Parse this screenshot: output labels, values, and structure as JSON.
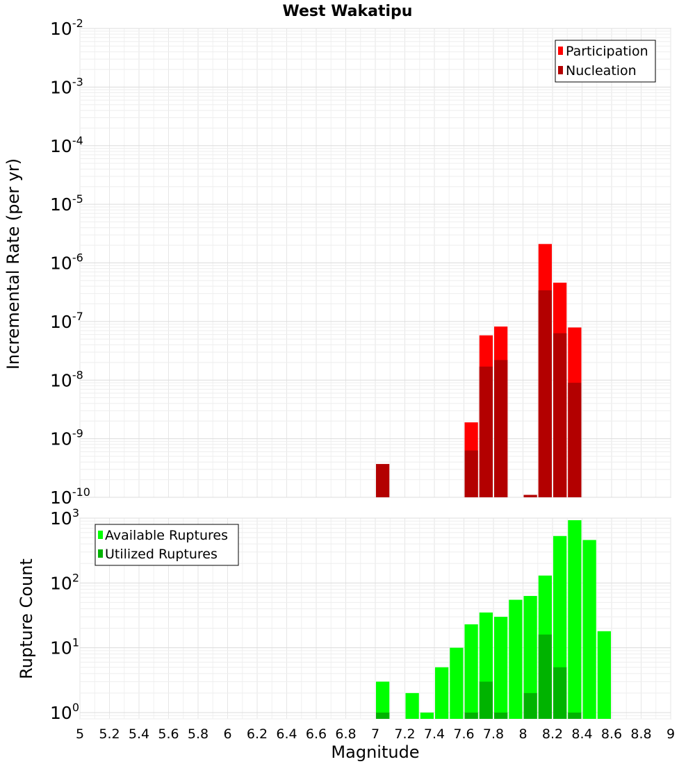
{
  "chart_data": [
    {
      "type": "bar",
      "title": "West Wakatipu",
      "ylabel": "Incremental Rate (per yr)",
      "yscale": "log",
      "ylim": [
        1e-10,
        0.01
      ],
      "xlim": [
        5,
        9
      ],
      "bar_width": 0.1,
      "legend_position": "top-right",
      "series": [
        {
          "name": "Participation",
          "color": "#ff0000",
          "x": [
            7.65,
            7.75,
            7.85,
            8.15,
            8.25,
            8.35
          ],
          "values": [
            1.9e-09,
            5.8e-08,
            8.2e-08,
            2.1e-06,
            4.6e-07,
            7.9e-08
          ]
        },
        {
          "name": "Nucleation",
          "color": "#b30000",
          "x": [
            7.05,
            7.65,
            7.75,
            7.85,
            8.05,
            8.15,
            8.25,
            8.35
          ],
          "values": [
            3.7e-10,
            6.3e-10,
            1.7e-08,
            2.2e-08,
            1.1e-10,
            3.4e-07,
            6.3e-08,
            9e-09
          ]
        }
      ]
    },
    {
      "type": "bar",
      "ylabel": "Rupture Count",
      "xlabel": "Magnitude",
      "yscale": "log",
      "ylim": [
        0.8,
        1000
      ],
      "xlim": [
        5,
        9
      ],
      "bar_width": 0.1,
      "legend_position": "top-left",
      "x_ticks": [
        "5",
        "5.2",
        "5.4",
        "5.6",
        "5.8",
        "6",
        "6.2",
        "6.4",
        "6.6",
        "6.8",
        "7",
        "7.2",
        "7.4",
        "7.6",
        "7.8",
        "8",
        "8.2",
        "8.4",
        "8.6",
        "8.8",
        "9"
      ],
      "series": [
        {
          "name": "Available Ruptures",
          "color": "#00ff00",
          "x": [
            7.05,
            7.25,
            7.35,
            7.45,
            7.55,
            7.65,
            7.75,
            7.85,
            7.95,
            8.05,
            8.15,
            8.25,
            8.35,
            8.45,
            8.55
          ],
          "values": [
            3,
            2,
            1,
            5,
            10,
            23,
            35,
            30,
            55,
            63,
            130,
            530,
            930,
            460,
            18
          ]
        },
        {
          "name": "Utilized Ruptures",
          "color": "#00b300",
          "x": [
            7.05,
            7.65,
            7.75,
            7.85,
            8.05,
            8.15,
            8.25,
            8.35
          ],
          "values": [
            1,
            1,
            3,
            1,
            2,
            16,
            5,
            1
          ]
        }
      ]
    }
  ]
}
